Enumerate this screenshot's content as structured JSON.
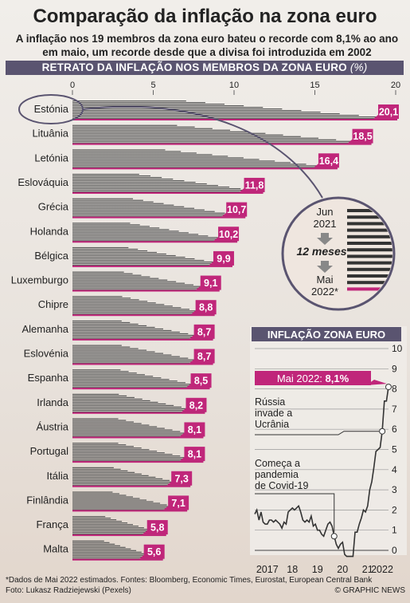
{
  "header": {
    "title": "Comparação da inflação na zona euro",
    "subtitle": "A inflação nos 19 membros da zona euro bateu o recorde com 8,1% ao ano em maio, um recorde desde que a divisa foi introduzida em 2002"
  },
  "colors": {
    "accent": "#c0267a",
    "band": "#5a5470",
    "bar": "#555555"
  },
  "chart_data": [
    {
      "type": "bar",
      "title": "RETRATO DA INFLAÇÃO NOS MEMBROS DA ZONA EURO",
      "unit": "(%)",
      "xlim": [
        0,
        20
      ],
      "ticks": [
        "0",
        "5",
        "10",
        "15",
        "20"
      ],
      "categories": [
        "Estónia",
        "Lituânia",
        "Letónia",
        "Eslováquia",
        "Grécia",
        "Holanda",
        "Bélgica",
        "Luxemburgo",
        "Chipre",
        "Alemanha",
        "Eslovénia",
        "Espanha",
        "Irlanda",
        "Áustria",
        "Portugal",
        "Itália",
        "Finlândia",
        "França",
        "Malta"
      ],
      "values": [
        20.1,
        18.5,
        16.4,
        11.8,
        10.7,
        10.2,
        9.9,
        9.1,
        8.8,
        8.7,
        8.7,
        8.5,
        8.2,
        8.1,
        8.1,
        7.3,
        7.1,
        5.8,
        5.6
      ],
      "labels": [
        "20,1",
        "18,5",
        "16,4",
        "11,8",
        "10,7",
        "10,2",
        "9,9",
        "9,1",
        "8,8",
        "8,7",
        "8,7",
        "8,5",
        "8,2",
        "8,1",
        "8,1",
        "7,3",
        "7,1",
        "5,8",
        "5,6"
      ],
      "inset": {
        "start": "Jun 2021",
        "start_line1": "Jun",
        "start_line2": "2021",
        "span": "12 meses",
        "end_line1": "Mai",
        "end_line2": "2022*"
      }
    },
    {
      "type": "line",
      "title": "INFLAÇÃO ZONA EURO",
      "ylim": [
        0,
        10
      ],
      "yticks": [
        "0",
        "1",
        "2",
        "3",
        "4",
        "5",
        "6",
        "7",
        "8",
        "9",
        "10"
      ],
      "xticks": [
        "2017",
        "18",
        "19",
        "20",
        "21",
        "2022"
      ],
      "series": [
        {
          "x": [
            "2017-01",
            "2017-02",
            "2017-03",
            "2017-04",
            "2017-05",
            "2017-06",
            "2017-07",
            "2017-08",
            "2017-09",
            "2017-10",
            "2017-11",
            "2017-12",
            "2018-01",
            "2018-02",
            "2018-03",
            "2018-04",
            "2018-05",
            "2018-06",
            "2018-07",
            "2018-08",
            "2018-09",
            "2018-10",
            "2018-11",
            "2018-12",
            "2019-01",
            "2019-02",
            "2019-03",
            "2019-04",
            "2019-05",
            "2019-06",
            "2019-07",
            "2019-08",
            "2019-09",
            "2019-10",
            "2019-11",
            "2019-12",
            "2020-01",
            "2020-02",
            "2020-03",
            "2020-04",
            "2020-05",
            "2020-06",
            "2020-07",
            "2020-08",
            "2020-09",
            "2020-10",
            "2020-11",
            "2020-12",
            "2021-01",
            "2021-02",
            "2021-03",
            "2021-04",
            "2021-05",
            "2021-06",
            "2021-07",
            "2021-08",
            "2021-09",
            "2021-10",
            "2021-11",
            "2021-12",
            "2022-01",
            "2022-02",
            "2022-03",
            "2022-04",
            "2022-05"
          ],
          "values": [
            1.8,
            2.0,
            1.5,
            1.9,
            1.4,
            1.3,
            1.3,
            1.5,
            1.5,
            1.4,
            1.5,
            1.4,
            1.3,
            1.1,
            1.4,
            1.3,
            1.9,
            2.0,
            2.1,
            2.0,
            2.1,
            2.2,
            1.9,
            1.5,
            1.4,
            1.5,
            1.4,
            1.7,
            1.2,
            1.3,
            1.0,
            1.0,
            0.8,
            0.7,
            1.0,
            1.3,
            1.4,
            1.2,
            0.7,
            0.3,
            0.1,
            0.3,
            0.4,
            -0.2,
            -0.3,
            -0.3,
            -0.3,
            -0.3,
            0.9,
            0.9,
            1.3,
            1.6,
            2.0,
            1.9,
            2.2,
            3.0,
            3.4,
            4.1,
            4.9,
            5.0,
            5.1,
            5.9,
            7.4,
            7.4,
            8.1
          ]
        }
      ],
      "callout": {
        "label": "Mai 2022: ",
        "value": "8,1%"
      },
      "annotations": [
        "Rússia invade a Ucrânia",
        "Começa a pandemia de Covid-19"
      ],
      "annotation_lines": {
        "russia": [
          "Rússia",
          "invade a",
          "Ucrânia"
        ],
        "covid": [
          "Começa a",
          "pandemia",
          "de Covid-19"
        ]
      }
    }
  ],
  "footer": {
    "sources": "*Dados de Mai 2022  estimados. Fontes: Bloomberg, Economic Times, Eurostat, European Central Bank",
    "photo": "Foto: Lukasz Radziejewski (Pexels)",
    "brand": "© GRAPHIC NEWS"
  }
}
